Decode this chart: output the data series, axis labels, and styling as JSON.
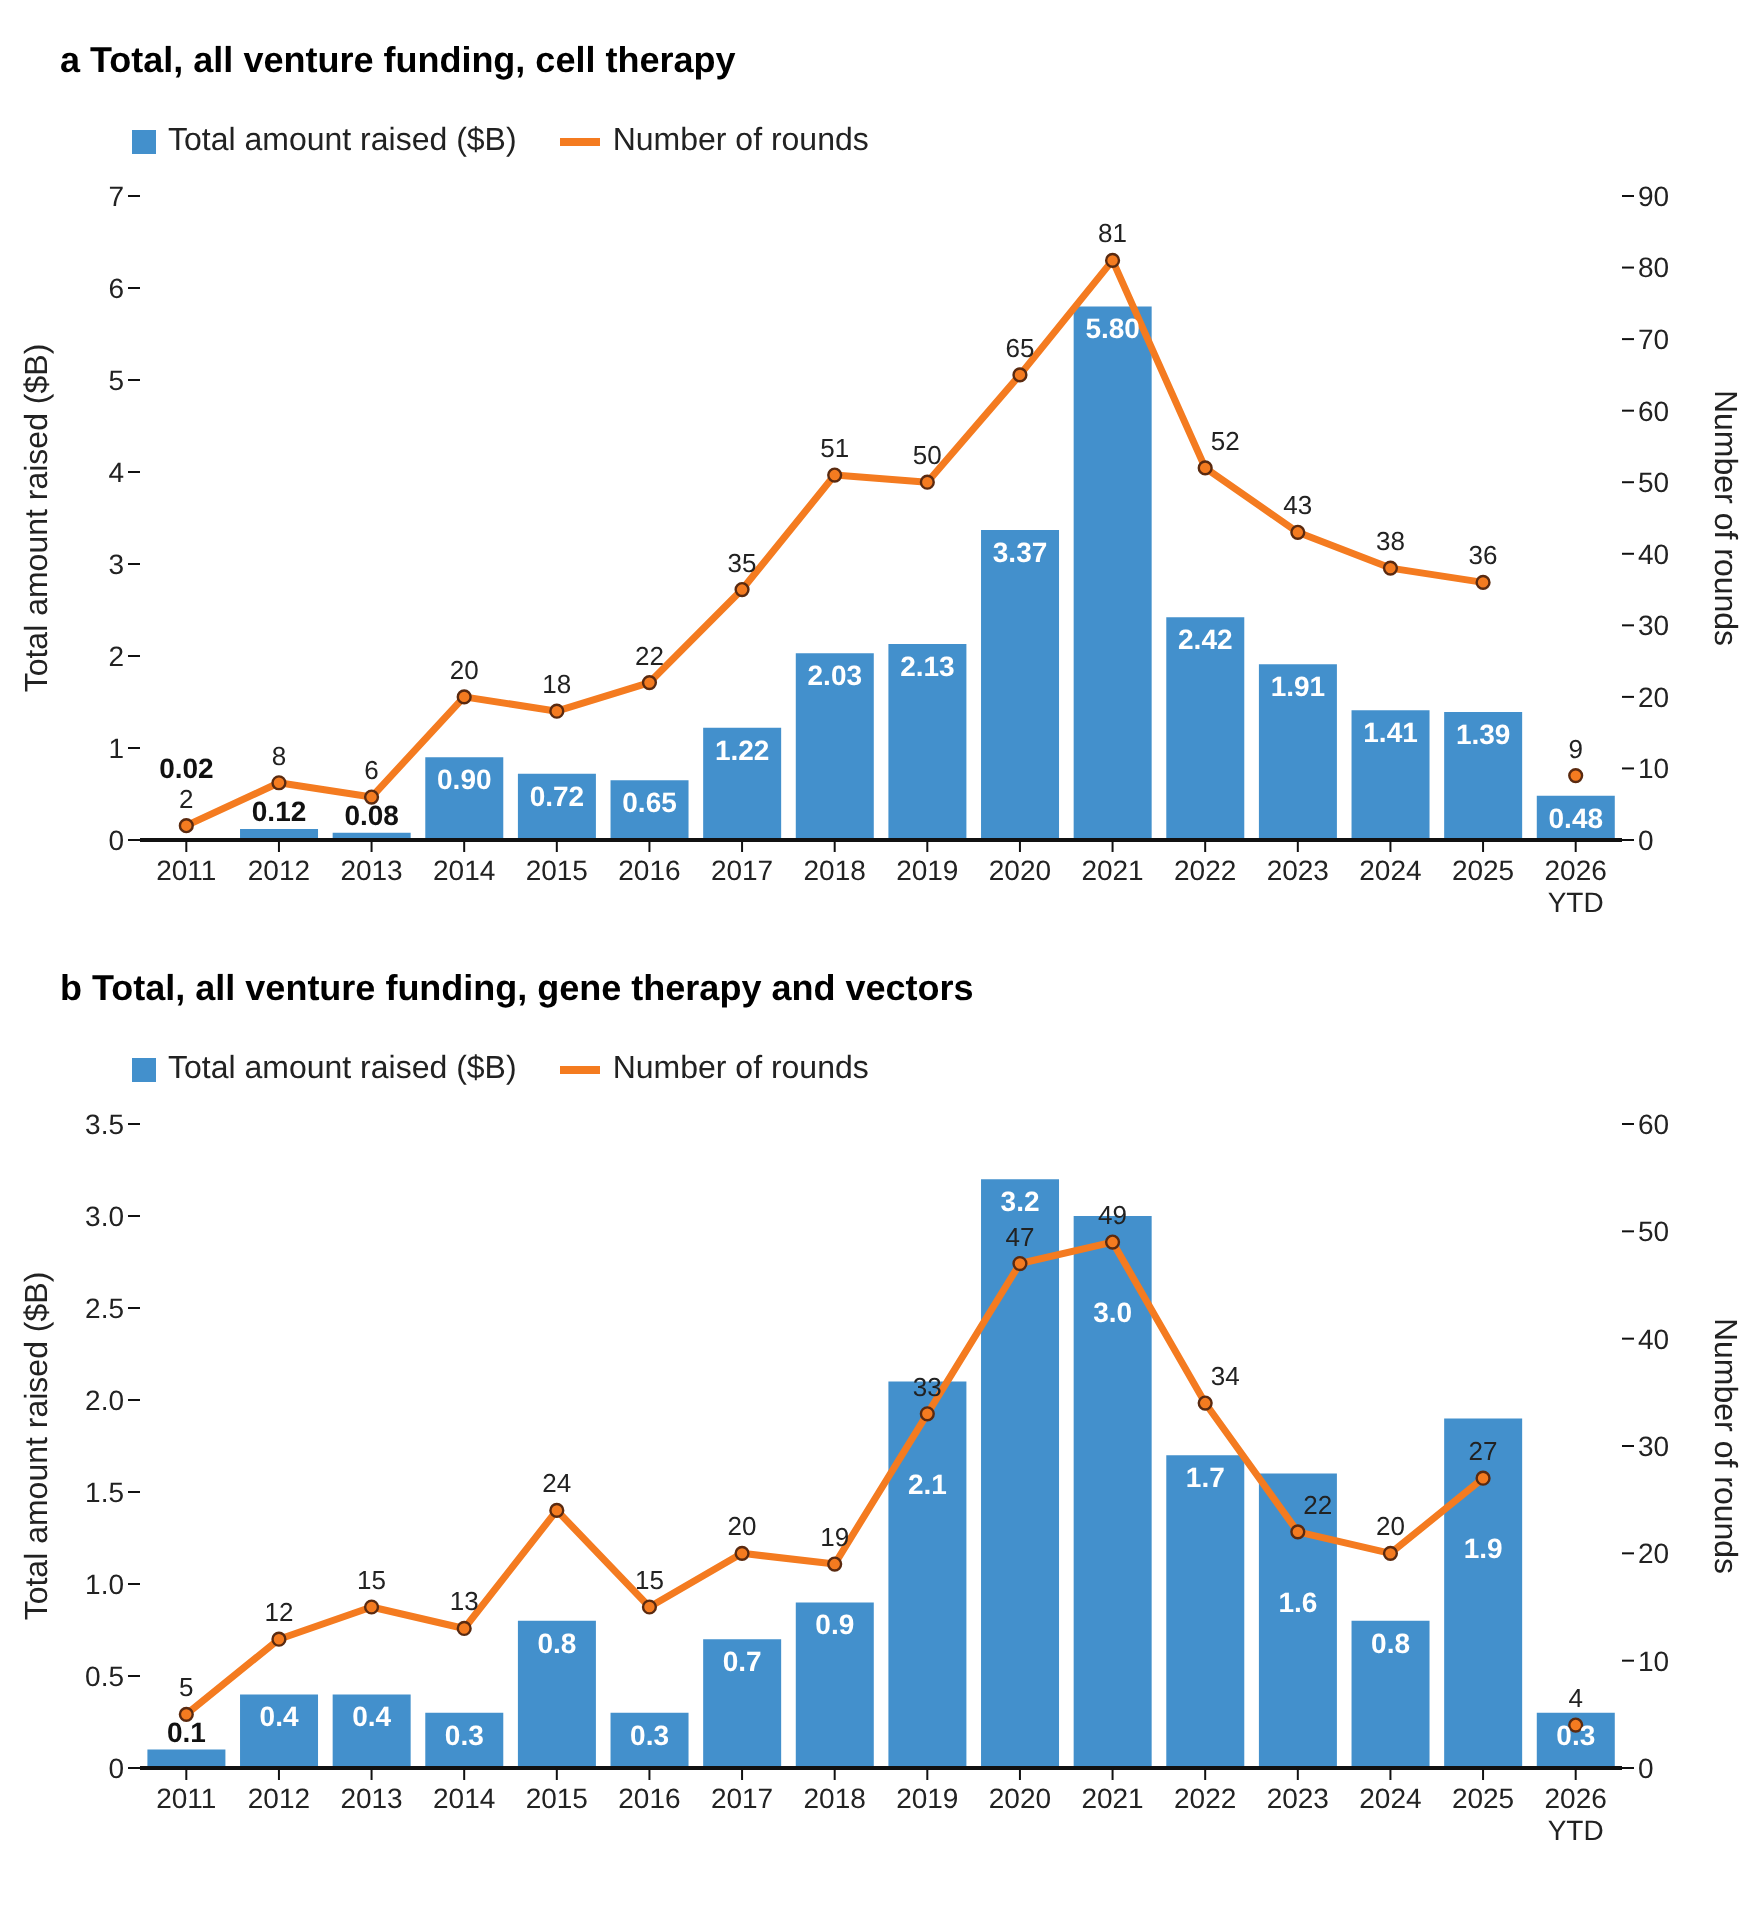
{
  "chart_data": [
    {
      "type": "bar",
      "title": "a  Total, all venture funding, cell therapy",
      "ylabel": "Total amount raised ($B)",
      "y2label": "Number of rounds",
      "categories": [
        "2011",
        "2012",
        "2013",
        "2014",
        "2015",
        "2016",
        "2017",
        "2018",
        "2019",
        "2020",
        "2021",
        "2022",
        "2023",
        "2024",
        "2025",
        "2026\nYTD"
      ],
      "series": [
        {
          "name": "Total amount raised ($B)",
          "color": "#4390cc",
          "values": [
            0.02,
            0.12,
            0.08,
            0.9,
            0.72,
            0.65,
            1.22,
            2.03,
            2.13,
            3.37,
            5.8,
            2.42,
            1.91,
            1.41,
            1.39,
            0.48
          ],
          "value_labels": [
            "0.02",
            "0.12",
            "0.08",
            "0.90",
            "0.72",
            "0.65",
            "1.22",
            "2.03",
            "2.13",
            "3.37",
            "5.80",
            "2.42",
            "1.91",
            "1.41",
            "1.39",
            "0.48"
          ]
        },
        {
          "name": "Number of rounds",
          "type": "line",
          "axis": "y2",
          "color": "#f47b20",
          "values": [
            2,
            8,
            6,
            20,
            18,
            22,
            35,
            51,
            50,
            65,
            81,
            52,
            43,
            38,
            36,
            null
          ],
          "value_labels": [
            "2",
            "8",
            "6",
            "20",
            "18",
            "22",
            "35",
            "51",
            "50",
            "65",
            "81",
            "52",
            "43",
            "38",
            "36",
            null
          ]
        },
        {
          "type": "scatter",
          "axis": "y2",
          "color": "#f47b20",
          "values": [
            null,
            null,
            null,
            null,
            null,
            null,
            null,
            null,
            null,
            null,
            null,
            null,
            null,
            null,
            null,
            9
          ],
          "value_labels": [
            null,
            null,
            null,
            null,
            null,
            null,
            null,
            null,
            null,
            null,
            null,
            null,
            null,
            null,
            null,
            "9"
          ]
        }
      ],
      "ylim": [
        0,
        7
      ],
      "yticks": [
        0,
        1,
        2,
        3,
        4,
        5,
        6,
        7
      ],
      "y2lim": [
        0,
        90
      ],
      "y2ticks": [
        0,
        10,
        20,
        30,
        40,
        50,
        60,
        70,
        80,
        90
      ],
      "legend": "top left",
      "marker": "circle",
      "grid": false
    },
    {
      "type": "bar",
      "title": "b  Total, all venture funding, gene therapy and vectors",
      "ylabel": "Total amount raised ($B)",
      "y2label": "Number of rounds",
      "categories": [
        "2011",
        "2012",
        "2013",
        "2014",
        "2015",
        "2016",
        "2017",
        "2018",
        "2019",
        "2020",
        "2021",
        "2022",
        "2023",
        "2024",
        "2025",
        "2026\nYTD"
      ],
      "series": [
        {
          "name": "Total amount raised ($B)",
          "color": "#4390cc",
          "values": [
            0.1,
            0.4,
            0.4,
            0.3,
            0.8,
            0.3,
            0.7,
            0.9,
            2.1,
            3.2,
            3.0,
            1.7,
            1.6,
            0.8,
            1.9,
            0.3
          ],
          "value_labels": [
            "0.1",
            "0.4",
            "0.4",
            "0.3",
            "0.8",
            "0.3",
            "0.7",
            "0.9",
            "2.1",
            "3.2",
            "3.0",
            "1.7",
            "1.6",
            "0.8",
            "1.9",
            "0.3"
          ]
        },
        {
          "name": "Number of rounds",
          "type": "line",
          "axis": "y2",
          "color": "#f47b20",
          "values": [
            5,
            12,
            15,
            13,
            24,
            15,
            20,
            19,
            33,
            47,
            49,
            34,
            22,
            20,
            27,
            null
          ],
          "value_labels": [
            "5",
            "12",
            "15",
            "13",
            "24",
            "15",
            "20",
            "19",
            "33",
            "47",
            "49",
            "34",
            "22",
            "20",
            "27",
            null
          ]
        },
        {
          "type": "scatter",
          "axis": "y2",
          "color": "#f47b20",
          "values": [
            null,
            null,
            null,
            null,
            null,
            null,
            null,
            null,
            null,
            null,
            null,
            null,
            null,
            null,
            null,
            4
          ],
          "value_labels": [
            null,
            null,
            null,
            null,
            null,
            null,
            null,
            null,
            null,
            null,
            null,
            null,
            null,
            null,
            null,
            "4"
          ]
        }
      ],
      "ylim": [
        0,
        3.5
      ],
      "yticks": [
        0,
        {
          "value": 0.5,
          "label": "0.5"
        },
        {
          "value": 1,
          "label": "1.0"
        },
        {
          "value": 1.5,
          "label": "1.5"
        },
        {
          "value": 2,
          "label": "2.0"
        },
        {
          "value": 2.5,
          "label": "2.5"
        },
        {
          "value": 3,
          "label": "3.0"
        },
        {
          "value": 3.5,
          "label": "3.5"
        }
      ],
      "y2lim": [
        0,
        60
      ],
      "y2ticks": [
        0,
        10,
        20,
        30,
        40,
        50,
        60
      ],
      "legend": "top left",
      "marker": "circle",
      "grid": false
    }
  ]
}
